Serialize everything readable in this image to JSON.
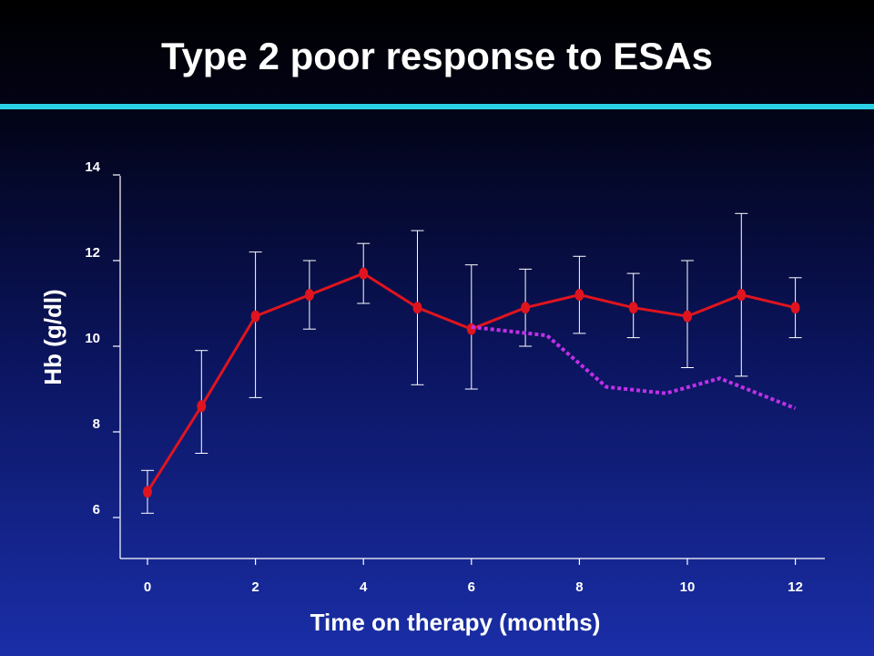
{
  "slide": {
    "title": "Type 2 poor response to ESAs",
    "rule_color": "#2ad1e6"
  },
  "chart_data": {
    "type": "line",
    "title": "Type 2 poor response to ESAs",
    "xlabel": "Time on therapy (months)",
    "ylabel": "Hb (g/dl)",
    "xlim": [
      0,
      12
    ],
    "ylim": [
      5,
      14
    ],
    "x_ticks": [
      0,
      2,
      4,
      6,
      8,
      10,
      12
    ],
    "y_ticks": [
      6,
      8,
      10,
      12,
      14
    ],
    "grid": false,
    "series": [
      {
        "style": "solid",
        "color": "#e0141e",
        "markers": true,
        "x": [
          0,
          1,
          2,
          3,
          4,
          5,
          6,
          7,
          8,
          9,
          10,
          11,
          12
        ],
        "values": [
          6.6,
          8.6,
          10.7,
          11.2,
          11.7,
          10.9,
          10.4,
          10.9,
          11.2,
          10.9,
          10.7,
          11.2,
          10.9
        ],
        "error_low": [
          6.1,
          7.5,
          8.8,
          10.4,
          11.0,
          9.1,
          9.0,
          10.0,
          10.3,
          10.2,
          9.5,
          9.3,
          10.2
        ],
        "error_high": [
          7.1,
          9.9,
          12.2,
          12.0,
          12.4,
          12.7,
          11.9,
          11.8,
          12.1,
          11.7,
          12.0,
          13.1,
          11.6
        ]
      },
      {
        "style": "dotted",
        "color": "#c030e8",
        "markers": false,
        "x": [
          6,
          7.4,
          8.5,
          9.6,
          10.6,
          12
        ],
        "values": [
          10.45,
          10.25,
          9.05,
          8.9,
          9.25,
          8.55
        ]
      }
    ]
  }
}
